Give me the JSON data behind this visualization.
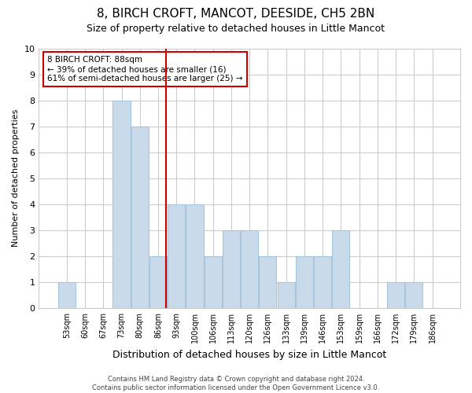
{
  "title": "8, BIRCH CROFT, MANCOT, DEESIDE, CH5 2BN",
  "subtitle": "Size of property relative to detached houses in Little Mancot",
  "xlabel": "Distribution of detached houses by size in Little Mancot",
  "ylabel": "Number of detached properties",
  "footer1": "Contains HM Land Registry data © Crown copyright and database right 2024.",
  "footer2": "Contains public sector information licensed under the Open Government Licence v3.0.",
  "bin_labels": [
    "53sqm",
    "60sqm",
    "67sqm",
    "73sqm",
    "80sqm",
    "86sqm",
    "93sqm",
    "100sqm",
    "106sqm",
    "113sqm",
    "120sqm",
    "126sqm",
    "133sqm",
    "139sqm",
    "146sqm",
    "153sqm",
    "159sqm",
    "166sqm",
    "172sqm",
    "179sqm",
    "186sqm"
  ],
  "bar_values": [
    1,
    0,
    0,
    8,
    7,
    2,
    4,
    4,
    2,
    3,
    3,
    2,
    1,
    2,
    2,
    3,
    0,
    0,
    1,
    1,
    0
  ],
  "bar_color": "#c9daea",
  "bar_edge_color": "#aac4de",
  "red_line_index": 5,
  "red_line_color": "#cc0000",
  "annotation_line1": "8 BIRCH CROFT: 88sqm",
  "annotation_line2": "← 39% of detached houses are smaller (16)",
  "annotation_line3": "61% of semi-detached houses are larger (25) →",
  "annotation_box_color": "white",
  "annotation_box_edge_color": "#cc0000",
  "ylim": [
    0,
    10
  ],
  "yticks": [
    0,
    1,
    2,
    3,
    4,
    5,
    6,
    7,
    8,
    9,
    10
  ],
  "grid_color": "#cccccc",
  "background_color": "white",
  "title_fontsize": 11,
  "subtitle_fontsize": 9,
  "tick_fontsize": 7,
  "ylabel_fontsize": 8,
  "xlabel_fontsize": 9,
  "footer_fontsize": 6,
  "annot_fontsize": 7.5
}
